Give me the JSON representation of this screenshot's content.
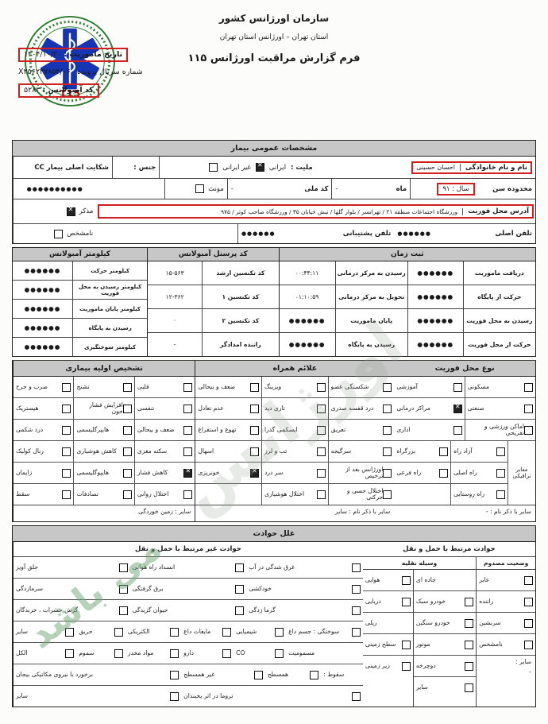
{
  "watermark": {
    "fragments": [
      "می باشد",
      "اورژانس"
    ]
  },
  "header": {
    "org_title": "سازمان اورژانس کشور",
    "subtitle": "استان تهران – اورژانس استان تهران",
    "form_title": "فرم گزارش مراقبت اورژانس ۱۱۵",
    "logo_number": "115",
    "mission_date_label": "تاریخ ماموریت :",
    "mission_date_value": "۱۴۰۴/۱۰/۲۰",
    "serial_label": "شماره سریال پرونده",
    "serial_value": "X۲۵۶۲۳۷۸۵۴/۰۶۰",
    "ambulance_label": "کد آمبولانس :",
    "ambulance_value": "۵۲۸۳"
  },
  "patient": {
    "section_title": "مشخصات عمومی بیمار",
    "name_label": "نام و نام خانوادگی",
    "name_value": "احسان حسینی",
    "nationality_label": "ملیت :",
    "nat_iranian": "ایرانی",
    "nat_foreign": "غیر ایرانی",
    "gender_label": "جنس :",
    "gender_female": "مونث",
    "gender_male": "مذکر",
    "gender_unknown": "نامشخص",
    "cc_label": "شکایت اصلی بیمار CC",
    "cc_value": "●●●●●●●●●●",
    "age_label": "محدوده سن",
    "age_value": "سال : ۹۱",
    "month_label": "ماه",
    "month_value": "-",
    "nid_label": "کد ملی",
    "nid_value": "-",
    "address_label": "آدرس محل فوریت",
    "address_value": "ورزشگاه اجتماعات منطقه ۲۱ / تهرانسر / بلوار گلها / نبش خیابان ۳۵ / ورزشگاه صاحب کوثر / ۹۷۵",
    "phone_label": "تلفن اصلی",
    "phone_value": "●●●●●●",
    "phone2_label": "تلفن پشتیبانی",
    "phone2_value": "●●●●●●"
  },
  "times": {
    "col_time": "ثبت زمان",
    "col_personnel": "کد پرسنل آمبولانس",
    "col_km": "کیلومتر آمبولانس",
    "rows": [
      {
        "l1": "دریافت ماموریت",
        "v1": "●●●●●●",
        "l2": "رسیدن به مرکز درمانی",
        "v2": "۰۰:۴۴:۱۱"
      },
      {
        "l1": "حرکت از پایگاه",
        "v1": "●●●●●●",
        "l2": "تحویل به مرکز درمانی",
        "v2": "۰۱:۱۰:۵۹"
      },
      {
        "l1": "رسیدن به محل فوریت",
        "v1": "●●●●●●",
        "l2": "پایان ماموریت",
        "v2": "●●●●●●"
      },
      {
        "l1": "حرکت از محل فوریت",
        "v1": "●●●●●●",
        "l2": "رسیدن به پایگاه",
        "v2": "●●●●●●"
      }
    ],
    "personnel": [
      {
        "label": "کد تکنسین ارشد",
        "value": "۱۵-۵۶۳"
      },
      {
        "label": "کد تکنسین ۱",
        "value": "۱۲-۳۶۲"
      },
      {
        "label": "کد تکنسین ۲",
        "value": "·"
      },
      {
        "label": "راننده امدادگر",
        "value": "-"
      }
    ],
    "km": [
      {
        "label": "کیلومتر حرکت",
        "value": "●●●●●●"
      },
      {
        "label": "کیلومتر رسیدن به محل فوریت",
        "value": "●●●●●●"
      },
      {
        "label": "کیلومتر پایان ماموریت",
        "value": "●●●●●●"
      },
      {
        "label": "رسیدن به پایگاه",
        "value": "●●●●●●"
      },
      {
        "label": "کیلومتر سوختگیری",
        "value": "●●●●●●"
      }
    ]
  },
  "location_type": {
    "title": "نوع محل فوریت",
    "rows": [
      {
        "cells": [
          {
            "t": "مسکونی"
          },
          {
            "t": "آموزشی"
          }
        ]
      },
      {
        "cells": [
          {
            "t": "صنعتی"
          },
          {
            "t": "مراکز درمانی",
            "chk": true
          }
        ]
      },
      {
        "cells": [
          {
            "t": "اماکن ورزشی و تفریحی"
          },
          {
            "t": "اداری"
          }
        ]
      }
    ],
    "roads_group_label": "معابر ترافیکی",
    "road_rows": [
      {
        "cells": [
          {
            "t": "آزاد راه"
          },
          {
            "t": "بزرگراه"
          }
        ]
      },
      {
        "cells": [
          {
            "t": "راه اصلی"
          },
          {
            "t": "راه فرعی"
          }
        ]
      },
      {
        "cells": [
          {
            "t": "راه روستایی"
          },
          {
            "t": "",
            "box": false
          }
        ]
      }
    ],
    "footer": "سایر با ذکر نام : -"
  },
  "symptoms": {
    "title": "علائم همراه",
    "rows": [
      {
        "cells": [
          {
            "t": "شکستگی عضو"
          },
          {
            "t": "ویزینگ"
          },
          {
            "t": "ضعف و بیحالی"
          }
        ]
      },
      {
        "cells": [
          {
            "t": "درد قفسه صدری"
          },
          {
            "t": "تاری دید"
          },
          {
            "t": "عدم تعادل"
          }
        ]
      },
      {
        "cells": [
          {
            "t": "تعریق"
          },
          {
            "t": "ایسکمی گذرا"
          },
          {
            "t": "تهوع و استفراغ"
          }
        ]
      },
      {
        "cells": [
          {
            "t": "سرگیجه"
          },
          {
            "t": "تب و لرز"
          },
          {
            "t": "اسهال"
          }
        ]
      },
      {
        "cells": [
          {
            "t": "اورژانس بعد از ترخیص"
          },
          {
            "t": "سر درد"
          },
          {
            "t": "خونریزی",
            "chk": true
          }
        ]
      },
      {
        "cells": [
          {
            "t": "اختلال حسی و حرکتی"
          },
          {
            "t": "اختلال هوشیاری"
          },
          {
            "t": "",
            "box": false
          }
        ]
      }
    ],
    "footer": "سایر با ذکر نام : سایر"
  },
  "diagnosis": {
    "title": "تشخیص اولیه بیماری",
    "rows": [
      {
        "cells": [
          {
            "t": "قلبی"
          },
          {
            "t": "تشنج"
          },
          {
            "t": "ضرب و جرح"
          }
        ]
      },
      {
        "cells": [
          {
            "t": "تنفسی"
          },
          {
            "t": "افزایش فشار خون"
          },
          {
            "t": "هیستریک"
          }
        ]
      },
      {
        "cells": [
          {
            "t": "ضعف و بیحالی"
          },
          {
            "t": "هایپرگلیسمی"
          },
          {
            "t": "درد شکمی"
          }
        ]
      },
      {
        "cells": [
          {
            "t": "سکته مغزی"
          },
          {
            "t": "کاهش هوشیاری"
          },
          {
            "t": "رنال کولیک"
          }
        ]
      },
      {
        "cells": [
          {
            "t": "کاهش فشار",
            "chk": true
          },
          {
            "t": "هایپوگلیسمی"
          },
          {
            "t": "زایمان"
          }
        ]
      },
      {
        "cells": [
          {
            "t": "اختلال روانی"
          },
          {
            "t": "تصادفات"
          },
          {
            "t": "سقط"
          }
        ]
      }
    ],
    "footer": "سایر : زمین خوردگی"
  },
  "accidents": {
    "title": "علل حوادث",
    "transport_title": "حوادث مرتبط با حمل و نقل",
    "non_transport_title": "حوادث غیر مرتبط با حمل و نقل",
    "victim_status": {
      "title": "وضعیت مصدوم",
      "rows": [
        {
          "cells": [
            {
              "t": "عابر"
            }
          ]
        },
        {
          "cells": [
            {
              "t": "راننده"
            }
          ]
        },
        {
          "cells": [
            {
              "t": "سرنشین"
            }
          ]
        },
        {
          "cells": [
            {
              "t": "نامشخص"
            }
          ]
        }
      ],
      "other_label": "سایر :",
      "other_value": "-"
    },
    "vehicle": {
      "title": "وسیله نقلیه",
      "road_rows": [
        {
          "cells": [
            {
              "t": "جاده ای",
              "box": false
            }
          ]
        },
        {
          "cells": [
            {
              "t": "خودرو سبک"
            }
          ]
        },
        {
          "cells": [
            {
              "t": "خودرو سنگین"
            }
          ]
        },
        {
          "cells": [
            {
              "t": "موتور"
            }
          ]
        },
        {
          "cells": [
            {
              "t": "دوچرخه"
            }
          ]
        },
        {
          "cells": [
            {
              "t": "سایر"
            }
          ]
        }
      ],
      "env_rows": [
        {
          "cells": [
            {
              "t": "هوایی"
            }
          ]
        },
        {
          "cells": [
            {
              "t": "دریایی"
            }
          ]
        },
        {
          "cells": [
            {
              "t": "ریلی",
              "box": false
            }
          ]
        },
        {
          "cells": [
            {
              "t": "سطح زمینی"
            }
          ]
        },
        {
          "cells": [
            {
              "t": "زیر زمینی"
            }
          ]
        }
      ]
    },
    "non_transport_rows": [
      {
        "divs": true,
        "cells": [
          {
            "t": "غرق شدگی در آب"
          },
          {
            "t": "انسداد راه هوایی"
          },
          {
            "t": "حلق آویز"
          }
        ]
      },
      {
        "divs": true,
        "cells": [
          {
            "t": "خودکشی"
          },
          {
            "t": "برق گرفتگی"
          },
          {
            "t": "سرمازدگی"
          }
        ]
      },
      {
        "divs": true,
        "cells": [
          {
            "t": "گرما زدگی"
          },
          {
            "t": "حیوان گزیدگی"
          },
          {
            "t": "گزش حشرات ، خزندگان"
          }
        ]
      },
      {
        "cells": [
          {
            "t": "سوختگی : جسم داغ",
            "w": 22
          },
          {
            "t": "شیمیایی",
            "w": 15
          },
          {
            "t": "مایعات داغ",
            "w": 15
          },
          {
            "t": "الکتریکی",
            "w": 16
          },
          {
            "t": "حریق",
            "w": 14
          },
          {
            "t": "سایر",
            "w": 18
          }
        ]
      },
      {
        "cells": [
          {
            "t": "مسمومیت",
            "box": false,
            "w": 22
          },
          {
            "t": "CO",
            "w": 15
          },
          {
            "t": "دارو",
            "w": 15
          },
          {
            "t": "مواد مخدر",
            "w": 16
          },
          {
            "t": "سموم",
            "w": 14
          },
          {
            "t": "الکل",
            "w": 18
          }
        ]
      },
      {
        "cells": [
          {
            "t": "سقوط :",
            "box": false,
            "w": 12
          },
          {
            "t": "همسطح",
            "w": 16
          },
          {
            "t": "غیر همسطح",
            "w": 24
          },
          {
            "t": "برخورد با نیروی مکانیکی بیجان",
            "w": 48
          }
        ]
      },
      {
        "cells": [
          {
            "t": "تروما در اثر یخبندان",
            "w": 52
          },
          {
            "t": "سایر",
            "w": 48
          }
        ]
      }
    ]
  }
}
